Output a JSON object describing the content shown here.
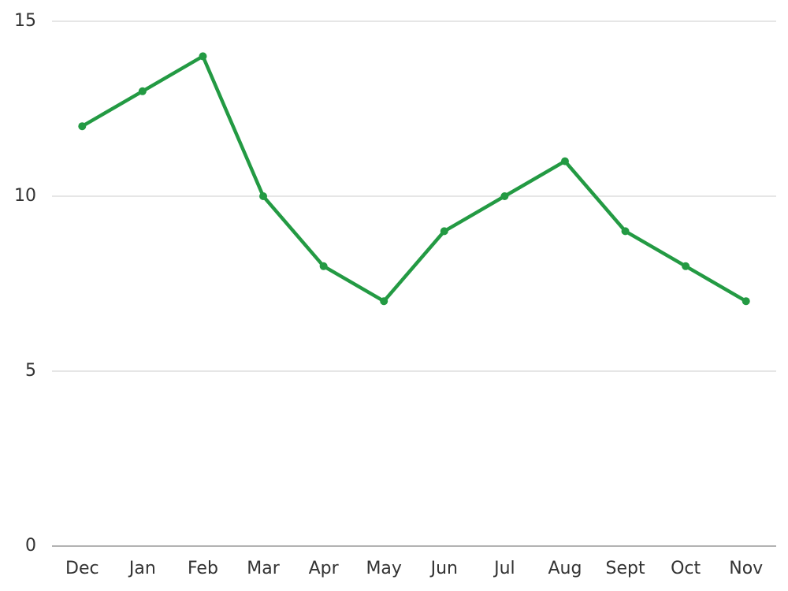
{
  "chart_data": {
    "type": "line",
    "categories": [
      "Dec",
      "Jan",
      "Feb",
      "Mar",
      "Apr",
      "May",
      "Jun",
      "Jul",
      "Aug",
      "Sept",
      "Oct",
      "Nov"
    ],
    "values": [
      12,
      13,
      14,
      10,
      8,
      7,
      9,
      10,
      11,
      9,
      8,
      7
    ],
    "color": "#239a43",
    "ylim": [
      0,
      15
    ],
    "yticks": [
      0,
      5,
      10,
      15
    ],
    "grid": true
  }
}
